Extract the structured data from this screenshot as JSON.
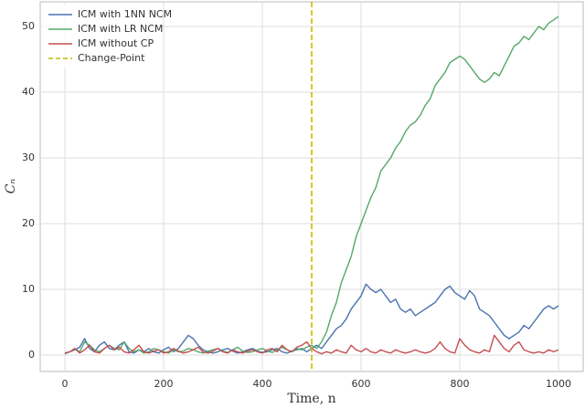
{
  "chart_data": {
    "type": "line",
    "xlabel": "Time, n",
    "ylabel": "Cₙ",
    "x": [
      0,
      10,
      20,
      30,
      40,
      50,
      60,
      70,
      80,
      90,
      100,
      110,
      120,
      130,
      140,
      150,
      160,
      170,
      180,
      190,
      200,
      210,
      220,
      230,
      240,
      250,
      260,
      270,
      280,
      290,
      300,
      310,
      320,
      330,
      340,
      350,
      360,
      370,
      380,
      390,
      400,
      410,
      420,
      430,
      440,
      450,
      460,
      470,
      480,
      490,
      500,
      510,
      520,
      530,
      540,
      550,
      560,
      570,
      580,
      590,
      600,
      610,
      620,
      630,
      640,
      650,
      660,
      670,
      680,
      690,
      700,
      710,
      720,
      730,
      740,
      750,
      760,
      770,
      780,
      790,
      800,
      810,
      820,
      830,
      840,
      850,
      860,
      870,
      880,
      890,
      900,
      910,
      920,
      930,
      940,
      950,
      960,
      970,
      980,
      990,
      1000
    ],
    "series": [
      {
        "name": "ICM with 1NN NCM",
        "color": "#4c72b0",
        "values": [
          0.2,
          0.5,
          0.8,
          1.2,
          2.5,
          1.0,
          0.5,
          1.5,
          2.0,
          1.0,
          0.8,
          1.5,
          2.0,
          0.5,
          0.3,
          0.8,
          0.5,
          1.0,
          0.5,
          0.3,
          0.8,
          1.2,
          0.5,
          1.0,
          2.0,
          3.0,
          2.5,
          1.5,
          0.8,
          0.5,
          0.3,
          0.5,
          0.8,
          1.0,
          0.6,
          0.3,
          0.5,
          0.8,
          1.0,
          0.6,
          0.4,
          0.5,
          0.8,
          1.0,
          0.5,
          0.3,
          0.6,
          0.8,
          1.0,
          0.5,
          1.0,
          1.5,
          1.0,
          2.0,
          3.0,
          4.0,
          4.5,
          5.5,
          7.0,
          8.0,
          9.0,
          10.8,
          10.0,
          9.5,
          10.0,
          9.0,
          8.0,
          8.5,
          7.0,
          6.5,
          7.0,
          6.0,
          6.5,
          7.0,
          7.5,
          8.0,
          9.0,
          10.0,
          10.5,
          9.5,
          9.0,
          8.5,
          9.8,
          9.0,
          7.0,
          6.5,
          6.0,
          5.0,
          4.0,
          3.0,
          2.5,
          3.0,
          3.5,
          4.5,
          4.0,
          5.0,
          6.0,
          7.0,
          7.5,
          7.0,
          7.5
        ]
      },
      {
        "name": "ICM with LR NCM",
        "color": "#55a868",
        "values": [
          0.3,
          0.5,
          1.0,
          0.5,
          2.0,
          1.5,
          0.8,
          0.5,
          1.0,
          1.5,
          1.0,
          0.8,
          2.0,
          1.0,
          0.5,
          0.8,
          0.3,
          0.5,
          1.0,
          0.8,
          0.5,
          0.3,
          0.8,
          0.5,
          0.6,
          1.0,
          0.8,
          0.5,
          0.3,
          0.6,
          0.8,
          1.0,
          0.6,
          0.4,
          0.8,
          1.2,
          0.6,
          0.4,
          0.5,
          0.8,
          1.0,
          0.6,
          0.4,
          0.8,
          1.2,
          0.8,
          0.5,
          1.0,
          0.8,
          1.2,
          1.5,
          1.0,
          2.0,
          3.5,
          6.0,
          8.0,
          11.0,
          13.0,
          15.0,
          18.0,
          20,
          22,
          24,
          25.5,
          28,
          29,
          30,
          31.5,
          32.5,
          34,
          35,
          35.5,
          36.5,
          38,
          39,
          41,
          42,
          43,
          44.5,
          45,
          45.5,
          45,
          44,
          43,
          42,
          41.5,
          42,
          43,
          42.5,
          44,
          45.5,
          47,
          47.5,
          48.5,
          48,
          49,
          50,
          49.5,
          50.5,
          51,
          51.5
        ]
      },
      {
        "name": "ICM without CP",
        "color": "#c44e52",
        "values": [
          0.3,
          0.5,
          1.0,
          0.3,
          0.8,
          1.5,
          0.5,
          0.3,
          1.0,
          1.5,
          0.8,
          1.2,
          0.5,
          0.3,
          0.8,
          1.5,
          0.5,
          0.3,
          0.6,
          0.8,
          0.3,
          0.5,
          1.0,
          0.6,
          0.3,
          0.5,
          0.8,
          1.2,
          0.5,
          0.3,
          0.6,
          1.0,
          0.5,
          0.3,
          0.8,
          0.5,
          0.3,
          0.6,
          0.8,
          0.5,
          0.3,
          0.8,
          1.0,
          0.5,
          1.5,
          0.8,
          0.5,
          1.2,
          1.5,
          2.0,
          1.0,
          0.5,
          0.2,
          0.5,
          0.3,
          0.8,
          0.5,
          0.3,
          1.5,
          0.8,
          0.5,
          1.0,
          0.5,
          0.3,
          0.8,
          0.5,
          0.3,
          0.8,
          0.5,
          0.3,
          0.5,
          0.8,
          0.5,
          0.3,
          0.5,
          1.0,
          2.0,
          1.0,
          0.5,
          0.3,
          2.5,
          1.5,
          0.8,
          0.5,
          0.3,
          0.8,
          0.5,
          3.0,
          2.0,
          1.0,
          0.5,
          1.5,
          2.0,
          0.8,
          0.5,
          0.3,
          0.5,
          0.3,
          0.8,
          0.5,
          0.8
        ]
      }
    ],
    "vline": {
      "name": "Change-Point",
      "x": 500,
      "color": "#bfbf00"
    },
    "xlim": [
      -50,
      1050
    ],
    "ylim": [
      -2.5,
      53.75
    ],
    "xticks": [
      0,
      200,
      400,
      600,
      800,
      1000
    ],
    "yticks": [
      0,
      10,
      20,
      30,
      40,
      50
    ],
    "grid": true,
    "legend": "upper left"
  }
}
